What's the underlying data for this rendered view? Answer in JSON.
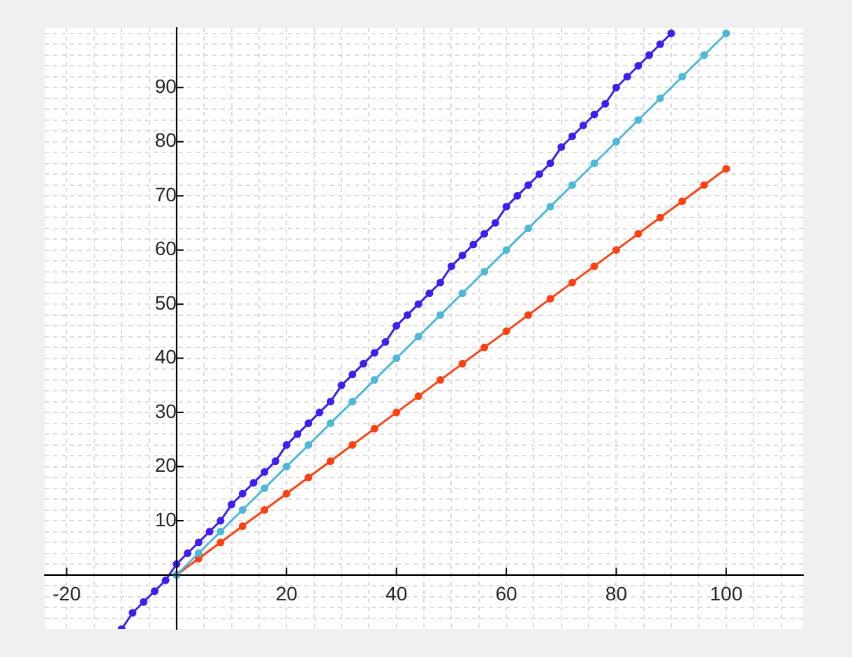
{
  "chart_data": {
    "type": "line",
    "xlim": [
      -24,
      114
    ],
    "ylim": [
      -10,
      101
    ],
    "xticks": [
      {
        "value": -20,
        "label": "-20"
      },
      {
        "value": -15,
        "label": null
      },
      {
        "value": -10,
        "label": null
      },
      {
        "value": -5,
        "label": null
      },
      {
        "value": 0,
        "label": null
      },
      {
        "value": 5,
        "label": null
      },
      {
        "value": 10,
        "label": null
      },
      {
        "value": 15,
        "label": null
      },
      20,
      {
        "value": 25,
        "label": null
      },
      {
        "value": 30,
        "label": null
      },
      {
        "value": 35,
        "label": null
      },
      40,
      {
        "value": 45,
        "label": null
      },
      {
        "value": 50,
        "label": null
      },
      {
        "value": 55,
        "label": null
      },
      60,
      {
        "value": 65,
        "label": null
      },
      {
        "value": 70,
        "label": null
      },
      {
        "value": 75,
        "label": null
      },
      80,
      {
        "value": 85,
        "label": null
      },
      {
        "value": 90,
        "label": null
      },
      {
        "value": 95,
        "label": null
      },
      100,
      {
        "value": 105,
        "label": null
      },
      {
        "value": 110,
        "label": null
      }
    ],
    "yticks": [
      {
        "value": -8,
        "label": null
      },
      {
        "value": -6,
        "label": null
      },
      {
        "value": -4,
        "label": null
      },
      {
        "value": -2,
        "label": null
      },
      {
        "value": 0,
        "label": null
      },
      {
        "value": 2,
        "label": null
      },
      {
        "value": 4,
        "label": null
      },
      {
        "value": 6,
        "label": null
      },
      {
        "value": 8,
        "label": null
      },
      10,
      {
        "value": 12,
        "label": null
      },
      {
        "value": 14,
        "label": null
      },
      {
        "value": 16,
        "label": null
      },
      {
        "value": 18,
        "label": null
      },
      20,
      {
        "value": 22,
        "label": null
      },
      {
        "value": 24,
        "label": null
      },
      {
        "value": 26,
        "label": null
      },
      {
        "value": 28,
        "label": null
      },
      30,
      {
        "value": 32,
        "label": null
      },
      {
        "value": 34,
        "label": null
      },
      {
        "value": 36,
        "label": null
      },
      {
        "value": 38,
        "label": null
      },
      40,
      {
        "value": 42,
        "label": null
      },
      {
        "value": 44,
        "label": null
      },
      {
        "value": 46,
        "label": null
      },
      {
        "value": 48,
        "label": null
      },
      50,
      {
        "value": 52,
        "label": null
      },
      {
        "value": 54,
        "label": null
      },
      {
        "value": 56,
        "label": null
      },
      {
        "value": 58,
        "label": null
      },
      60,
      {
        "value": 62,
        "label": null
      },
      {
        "value": 64,
        "label": null
      },
      {
        "value": 66,
        "label": null
      },
      {
        "value": 68,
        "label": null
      },
      70,
      {
        "value": 72,
        "label": null
      },
      {
        "value": 74,
        "label": null
      },
      {
        "value": 76,
        "label": null
      },
      {
        "value": 78,
        "label": null
      },
      80,
      {
        "value": 82,
        "label": null
      },
      {
        "value": 84,
        "label": null
      },
      {
        "value": 86,
        "label": null
      },
      {
        "value": 88,
        "label": null
      },
      90,
      {
        "value": 92,
        "label": null
      },
      {
        "value": 94,
        "label": null
      },
      {
        "value": 96,
        "label": null
      },
      {
        "value": 98,
        "label": null
      },
      {
        "value": 100,
        "label": null
      }
    ],
    "grid": true,
    "legend": false,
    "marker": "circle",
    "line_style": "solid",
    "series": [
      {
        "color": "#3d1ff0",
        "x": [
          -10,
          -8,
          -6,
          -4,
          -2,
          0,
          2,
          4,
          6,
          8,
          10,
          12,
          14,
          16,
          18,
          20,
          22,
          24,
          26,
          28,
          30,
          32,
          34,
          36,
          38,
          40,
          42,
          44,
          46,
          48,
          50,
          52,
          54,
          56,
          58,
          60,
          62,
          64,
          66,
          68,
          70,
          72,
          74,
          76,
          78,
          80,
          82,
          84,
          86,
          88,
          90
        ],
        "values": [
          -10,
          -7,
          -5,
          -3,
          -1,
          2,
          4,
          6,
          8,
          10,
          13,
          15,
          17,
          19,
          21,
          24,
          26,
          28,
          30,
          32,
          35,
          37,
          39,
          41,
          43,
          46,
          48,
          50,
          52,
          54,
          57,
          59,
          61,
          63,
          65,
          68,
          70,
          72,
          74,
          76,
          79,
          81,
          83,
          85,
          87,
          90,
          92,
          94,
          96,
          98,
          100
        ]
      },
      {
        "color": "#4fb8d8",
        "x": [
          0,
          4,
          8,
          12,
          16,
          20,
          24,
          28,
          32,
          36,
          40,
          44,
          48,
          52,
          56,
          60,
          64,
          68,
          72,
          76,
          80,
          84,
          88,
          92,
          96,
          100
        ],
        "values": [
          0,
          4,
          8,
          12,
          16,
          20,
          24,
          28,
          32,
          36,
          40,
          44,
          48,
          52,
          56,
          60,
          64,
          68,
          72,
          76,
          80,
          84,
          88,
          92,
          96,
          100
        ]
      },
      {
        "color": "#ff4010",
        "x": [
          0,
          4,
          8,
          12,
          16,
          20,
          24,
          28,
          32,
          36,
          40,
          44,
          48,
          52,
          56,
          60,
          64,
          68,
          72,
          76,
          80,
          84,
          88,
          92,
          96,
          100
        ],
        "values": [
          0,
          3,
          6,
          9,
          12,
          15,
          18,
          21,
          24,
          27,
          30,
          33,
          36,
          39,
          42,
          45,
          48,
          51,
          54,
          57,
          60,
          63,
          66,
          69,
          72,
          75
        ]
      }
    ]
  }
}
